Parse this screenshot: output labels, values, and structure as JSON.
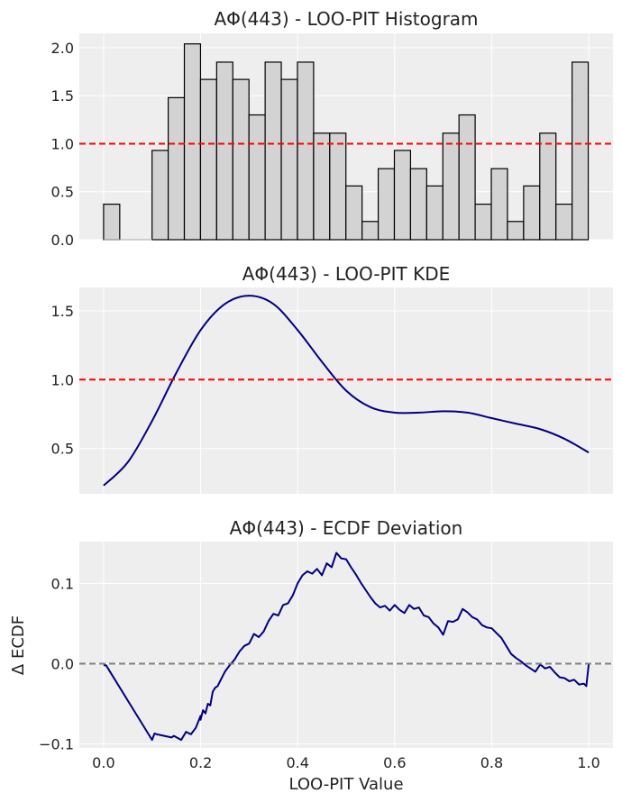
{
  "chart_data": [
    {
      "type": "bar",
      "title": "AΦ(443) - LOO-PIT Histogram",
      "xlabel": "",
      "ylabel": "",
      "ylim": [
        0,
        2.15
      ],
      "bin_edges_start": 0.0,
      "bin_width": 0.0333,
      "values": [
        0.37,
        0,
        0,
        0.93,
        1.48,
        2.04,
        1.67,
        1.85,
        1.67,
        1.3,
        1.85,
        1.67,
        1.85,
        1.11,
        1.11,
        0.56,
        0.19,
        0.74,
        0.93,
        0.74,
        0.56,
        1.11,
        1.3,
        0.37,
        0.74,
        0.19,
        0.56,
        1.11,
        0.37,
        1.85
      ],
      "yticks": [
        "0.0",
        "0.5",
        "1.0",
        "1.5",
        "2.0"
      ],
      "reference_line": {
        "y": 1.0,
        "color": "#ff0000",
        "style": "dashed"
      },
      "bar_color": "#d3d3d3",
      "edge_color": "#000000",
      "grid": true
    },
    {
      "type": "line",
      "title": "AΦ(443) - LOO-PIT KDE",
      "xlabel": "",
      "ylabel": "",
      "ylim": [
        0.17,
        1.67
      ],
      "x": [
        0.0,
        0.05,
        0.1,
        0.15,
        0.2,
        0.25,
        0.3,
        0.35,
        0.4,
        0.45,
        0.5,
        0.55,
        0.6,
        0.65,
        0.7,
        0.75,
        0.8,
        0.85,
        0.9,
        0.95,
        1.0
      ],
      "y": [
        0.23,
        0.4,
        0.7,
        1.05,
        1.36,
        1.55,
        1.61,
        1.55,
        1.36,
        1.13,
        0.92,
        0.8,
        0.76,
        0.76,
        0.77,
        0.76,
        0.72,
        0.68,
        0.64,
        0.57,
        0.47
      ],
      "yticks": [
        "0.5",
        "1.0",
        "1.5"
      ],
      "reference_line": {
        "y": 1.0,
        "color": "#ff0000",
        "style": "dashed"
      },
      "line_color": "#00007f",
      "grid": true
    },
    {
      "type": "line",
      "title": "AΦ(443) - ECDF Deviation",
      "xlabel": "LOO-PIT Value",
      "ylabel": "Δ ECDF",
      "xlim": [
        -0.05,
        1.05
      ],
      "ylim": [
        -0.105,
        0.152
      ],
      "xticks": [
        "0.0",
        "0.2",
        "0.4",
        "0.6",
        "0.8",
        "1.0"
      ],
      "yticks": [
        "−0.1",
        "0.0",
        "0.1"
      ],
      "x": [
        0.0,
        0.005,
        0.1,
        0.105,
        0.11,
        0.14,
        0.145,
        0.16,
        0.17,
        0.18,
        0.19,
        0.2,
        0.2,
        0.205,
        0.21,
        0.215,
        0.22,
        0.225,
        0.23,
        0.235,
        0.24,
        0.25,
        0.26,
        0.27,
        0.28,
        0.29,
        0.3,
        0.31,
        0.32,
        0.33,
        0.34,
        0.35,
        0.36,
        0.37,
        0.38,
        0.39,
        0.4,
        0.41,
        0.42,
        0.43,
        0.44,
        0.45,
        0.46,
        0.47,
        0.48,
        0.49,
        0.5,
        0.51,
        0.52,
        0.53,
        0.54,
        0.55,
        0.56,
        0.57,
        0.58,
        0.59,
        0.6,
        0.61,
        0.62,
        0.63,
        0.64,
        0.65,
        0.66,
        0.67,
        0.68,
        0.69,
        0.7,
        0.71,
        0.72,
        0.73,
        0.74,
        0.75,
        0.76,
        0.77,
        0.78,
        0.79,
        0.8,
        0.81,
        0.82,
        0.83,
        0.84,
        0.85,
        0.86,
        0.87,
        0.88,
        0.89,
        0.9,
        0.91,
        0.92,
        0.93,
        0.94,
        0.95,
        0.96,
        0.97,
        0.98,
        0.99,
        0.995,
        1.0
      ],
      "y": [
        -0.002,
        -0.002,
        -0.095,
        -0.087,
        -0.088,
        -0.092,
        -0.09,
        -0.095,
        -0.085,
        -0.088,
        -0.08,
        -0.065,
        -0.07,
        -0.058,
        -0.062,
        -0.05,
        -0.052,
        -0.035,
        -0.03,
        -0.028,
        -0.022,
        -0.01,
        -0.002,
        0.005,
        0.015,
        0.022,
        0.025,
        0.037,
        0.033,
        0.04,
        0.053,
        0.062,
        0.06,
        0.073,
        0.075,
        0.085,
        0.1,
        0.11,
        0.115,
        0.112,
        0.118,
        0.11,
        0.125,
        0.12,
        0.138,
        0.131,
        0.13,
        0.12,
        0.111,
        0.101,
        0.092,
        0.083,
        0.075,
        0.07,
        0.072,
        0.066,
        0.073,
        0.067,
        0.063,
        0.073,
        0.068,
        0.07,
        0.06,
        0.058,
        0.05,
        0.045,
        0.036,
        0.053,
        0.052,
        0.055,
        0.068,
        0.064,
        0.058,
        0.055,
        0.048,
        0.045,
        0.044,
        0.038,
        0.032,
        0.022,
        0.012,
        0.007,
        0.003,
        -0.002,
        -0.006,
        -0.01,
        -0.001,
        -0.006,
        -0.004,
        -0.011,
        -0.017,
        -0.018,
        -0.022,
        -0.02,
        -0.026,
        -0.025,
        -0.028,
        -0.001
      ],
      "reference_line": {
        "y": 0.0,
        "color": "#808080",
        "style": "dashed"
      },
      "line_color": "#00007f",
      "grid": true
    }
  ]
}
